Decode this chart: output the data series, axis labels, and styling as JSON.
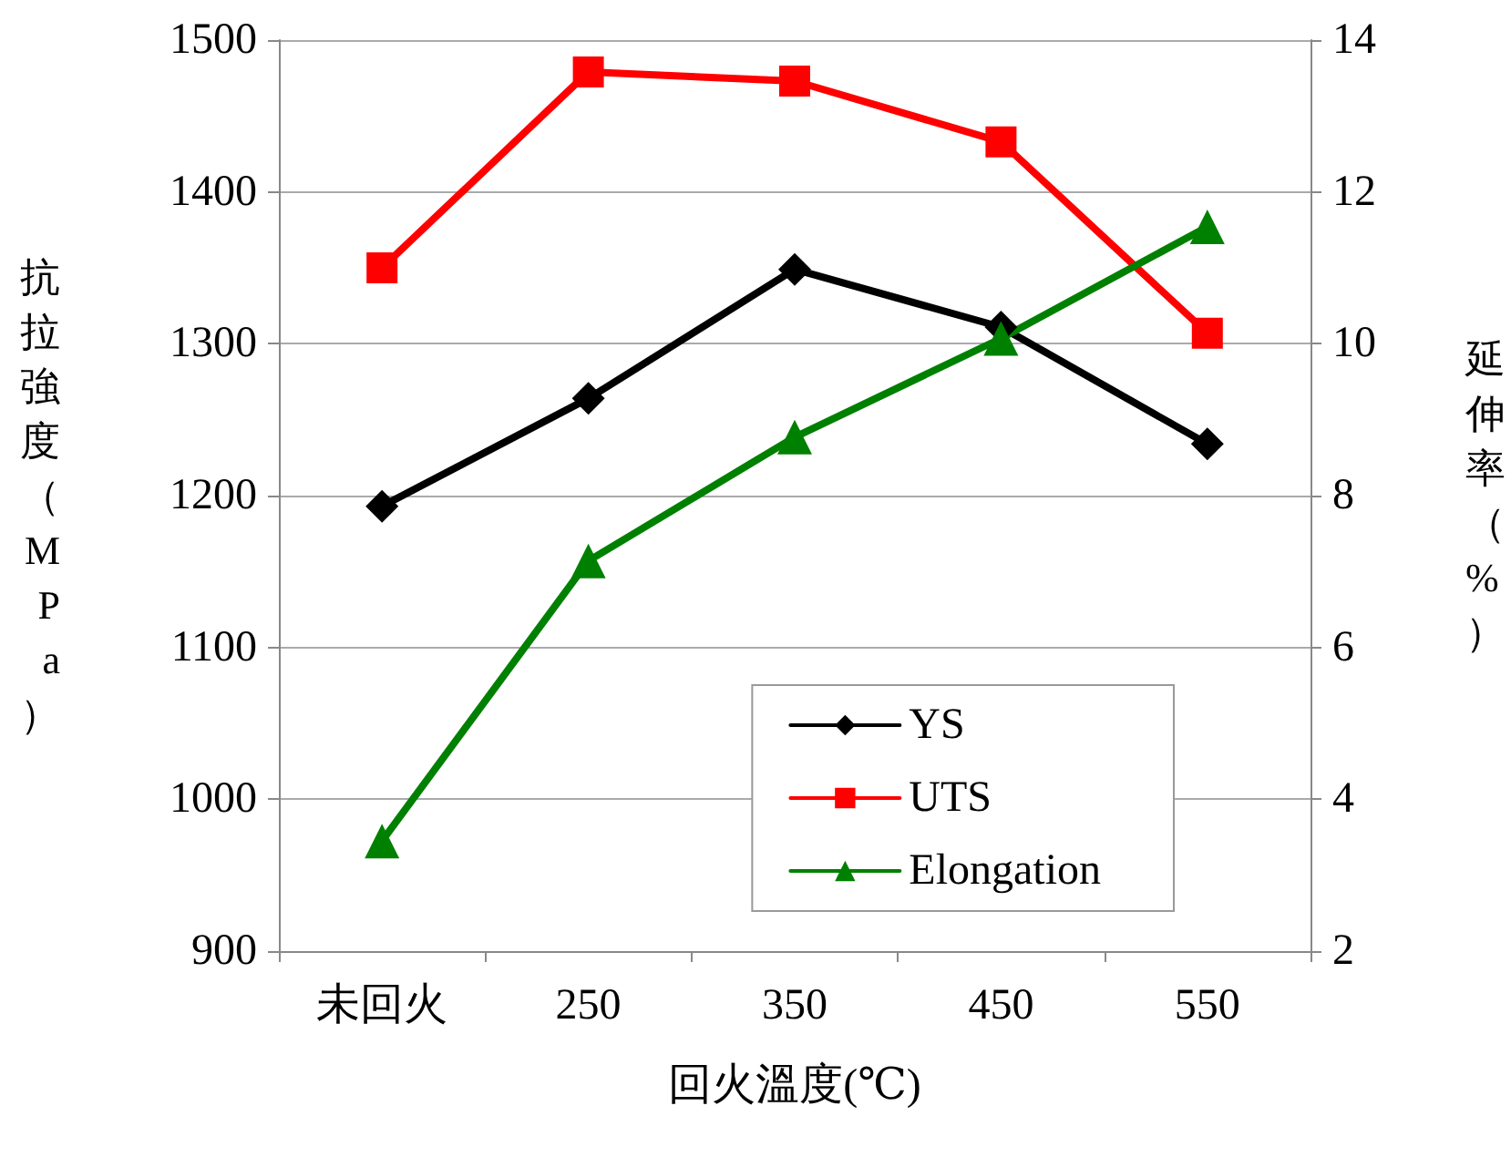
{
  "chart_data": {
    "type": "line",
    "xlabel": "回火溫度(℃)",
    "ylabel": "抗拉強度（MPa）",
    "y2label": "延伸率（%）",
    "categories": [
      "未回火",
      "250",
      "350",
      "450",
      "550"
    ],
    "series": [
      {
        "name": "YS",
        "color": "#000000",
        "marker": "diamond",
        "values": [
          1193,
          1264,
          1349,
          1311,
          1234
        ]
      },
      {
        "name": "UTS",
        "color": "#ff0000",
        "marker": "square",
        "values": [
          1350,
          1479,
          1473,
          1433,
          1307
        ]
      },
      {
        "name": "Elongation",
        "color": "#008000",
        "marker": "triangle",
        "axis": "y2",
        "values": [
          3.45,
          7.14,
          8.77,
          10.07,
          11.54
        ]
      }
    ],
    "ylim": [
      900,
      1500
    ],
    "yticks": [
      900,
      1000,
      1100,
      1200,
      1300,
      1400,
      1500
    ],
    "y2lim": [
      2,
      14
    ],
    "y2ticks": [
      2,
      4,
      6,
      8,
      10,
      12,
      14
    ],
    "grid": "y",
    "legend": "bottom right",
    "line_style": "solid"
  }
}
